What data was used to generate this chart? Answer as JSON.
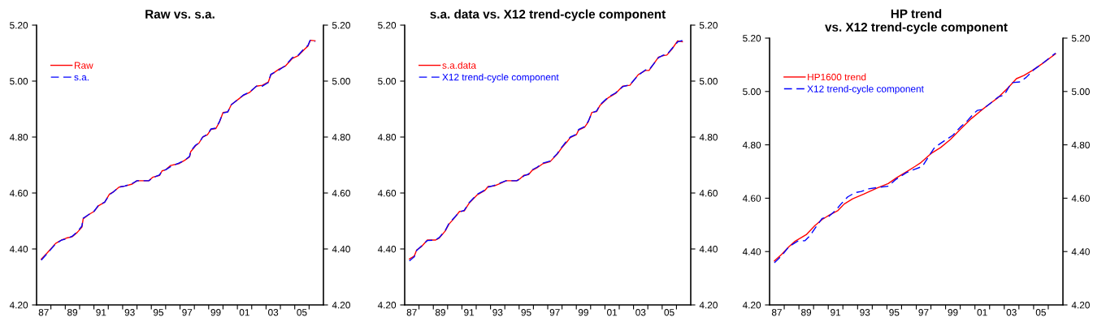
{
  "chart_data": [
    {
      "type": "line",
      "title": "Raw vs. s.a.",
      "legend": "top left",
      "grid": false,
      "xlim": [
        "1987",
        "2007"
      ],
      "ylim": [
        4.2,
        5.2
      ],
      "y2lim": [
        4.2,
        5.2
      ],
      "xticks": [
        {
          "value": "1988",
          "label": null
        },
        {
          "value": "1989",
          "label": null
        },
        {
          "value": "1990",
          "label": null
        },
        {
          "value": "1991",
          "label": null
        },
        {
          "value": "1992",
          "label": null
        },
        {
          "value": "1993",
          "label": null
        },
        {
          "value": "1994",
          "label": null
        },
        {
          "value": "1995",
          "label": null
        },
        {
          "value": "1996",
          "label": null
        },
        {
          "value": "1997",
          "label": null
        },
        {
          "value": "1998",
          "label": null
        },
        {
          "value": "1999",
          "label": null
        },
        {
          "value": "2000",
          "label": null
        },
        {
          "value": "2001",
          "label": null
        },
        {
          "value": "2002",
          "label": null
        },
        {
          "value": "2003",
          "label": null
        },
        {
          "value": "2004",
          "label": null
        },
        {
          "value": "2005",
          "label": null
        },
        {
          "value": "2006",
          "label": null
        },
        {
          "value": "1987-07",
          "label": "87"
        },
        {
          "value": "1989-07",
          "label": "89"
        },
        {
          "value": "1991-07",
          "label": "91"
        },
        {
          "value": "1993-07",
          "label": "93"
        },
        {
          "value": "1995-07",
          "label": "95"
        },
        {
          "value": "1997-07",
          "label": "97"
        },
        {
          "value": "1999-07",
          "label": "99"
        },
        {
          "value": "2001-07",
          "label": "01"
        },
        {
          "value": "2003-07",
          "label": "03"
        },
        {
          "value": "2005-07",
          "label": "05"
        }
      ],
      "yticks": [
        {
          "value": 4.2,
          "label": "4.20"
        },
        {
          "value": 4.4,
          "label": "4.40"
        },
        {
          "value": 4.6,
          "label": "4.60"
        },
        {
          "value": 4.8,
          "label": "4.80"
        },
        {
          "value": 5.0,
          "label": "5.00"
        },
        {
          "value": 5.2,
          "label": "5.20"
        }
      ],
      "y2ticks": [
        {
          "value": 4.2,
          "label": "4.20"
        },
        {
          "value": 4.4,
          "label": "4.40"
        },
        {
          "value": 4.6,
          "label": "4.60"
        },
        {
          "value": 4.8,
          "label": "4.80"
        },
        {
          "value": 5.0,
          "label": "5.00"
        },
        {
          "value": 5.2,
          "label": "5.20"
        }
      ],
      "series": [
        {
          "name": "Raw",
          "color": "#ff0000",
          "line_style": "solid",
          "x": [
            "1987-05",
            "1987-10",
            "1988-05",
            "1988-10",
            "1989-02",
            "1989-07",
            "1989-11",
            "1990-03",
            "1990-04",
            "1990-08",
            "1991-01",
            "1991-05",
            "1991-10",
            "1992-02",
            "1992-05",
            "1992-10",
            "1993-03",
            "1993-09",
            "1994-01",
            "1994-11",
            "1995-02",
            "1995-08",
            "1995-10",
            "1996-01",
            "1996-05",
            "1996-12",
            "1997-05",
            "1997-09",
            "1997-10",
            "1998-02",
            "1998-05",
            "1998-08",
            "1998-12",
            "1999-03",
            "1999-07",
            "1999-10",
            "2000-01",
            "2000-05",
            "2000-08",
            "2001-02",
            "2001-06",
            "2001-11",
            "2002-05",
            "2002-10",
            "2003-03",
            "2003-05",
            "2003-12",
            "2004-05",
            "2004-11",
            "2005-04",
            "2005-09",
            "2005-12",
            "2006-02",
            "2006-06"
          ],
          "values": [
            4.364,
            4.386,
            4.42,
            4.432,
            4.439,
            4.444,
            4.459,
            4.478,
            4.507,
            4.521,
            4.534,
            4.555,
            4.567,
            4.596,
            4.603,
            4.621,
            4.625,
            4.632,
            4.644,
            4.644,
            4.656,
            4.663,
            4.679,
            4.683,
            4.698,
            4.705,
            4.717,
            4.729,
            4.748,
            4.769,
            4.779,
            4.8,
            4.808,
            4.827,
            4.83,
            4.853,
            4.888,
            4.89,
            4.916,
            4.936,
            4.949,
            4.959,
            4.982,
            4.985,
            4.997,
            5.022,
            5.043,
            5.053,
            5.081,
            5.091,
            5.113,
            5.125,
            5.146,
            5.144
          ]
        },
        {
          "name": "s.a.",
          "color": "#0000ff",
          "line_style": "dashed",
          "x": [
            "1987-05",
            "1987-10",
            "1988-05",
            "1988-10",
            "1989-02",
            "1989-07",
            "1989-11",
            "1990-03",
            "1990-04",
            "1990-08",
            "1991-01",
            "1991-05",
            "1991-10",
            "1992-02",
            "1992-05",
            "1992-10",
            "1993-03",
            "1993-09",
            "1994-01",
            "1994-11",
            "1995-02",
            "1995-08",
            "1995-10",
            "1996-01",
            "1996-05",
            "1996-12",
            "1997-05",
            "1997-09",
            "1997-10",
            "1998-02",
            "1998-05",
            "1998-08",
            "1998-12",
            "1999-03",
            "1999-07",
            "1999-10",
            "2000-01",
            "2000-05",
            "2000-08",
            "2001-02",
            "2001-06",
            "2001-11",
            "2002-05",
            "2002-10",
            "2003-03",
            "2003-05",
            "2003-12",
            "2004-05",
            "2004-11",
            "2005-04",
            "2005-09",
            "2005-12",
            "2006-02",
            "2006-06"
          ],
          "values": [
            4.36,
            4.384,
            4.418,
            4.432,
            4.436,
            4.446,
            4.461,
            4.482,
            4.51,
            4.521,
            4.534,
            4.557,
            4.567,
            4.594,
            4.603,
            4.621,
            4.625,
            4.634,
            4.644,
            4.644,
            4.654,
            4.665,
            4.681,
            4.683,
            4.694,
            4.707,
            4.717,
            4.731,
            4.75,
            4.771,
            4.779,
            4.8,
            4.81,
            4.829,
            4.832,
            4.855,
            4.886,
            4.89,
            4.916,
            4.936,
            4.95,
            4.96,
            4.982,
            4.982,
            4.995,
            5.024,
            5.04,
            5.055,
            5.084,
            5.093,
            5.117,
            5.127,
            5.147,
            5.141
          ]
        }
      ]
    },
    {
      "type": "line",
      "title": "s.a. data vs. X12 trend-cycle component",
      "legend": "top left",
      "grid": false,
      "xlim": [
        "1987",
        "2007"
      ],
      "ylim": [
        4.2,
        5.2
      ],
      "y2lim": [
        4.2,
        5.2
      ],
      "xticks": [
        {
          "value": "1988",
          "label": null
        },
        {
          "value": "1989",
          "label": null
        },
        {
          "value": "1990",
          "label": null
        },
        {
          "value": "1991",
          "label": null
        },
        {
          "value": "1992",
          "label": null
        },
        {
          "value": "1993",
          "label": null
        },
        {
          "value": "1994",
          "label": null
        },
        {
          "value": "1995",
          "label": null
        },
        {
          "value": "1996",
          "label": null
        },
        {
          "value": "1997",
          "label": null
        },
        {
          "value": "1998",
          "label": null
        },
        {
          "value": "1999",
          "label": null
        },
        {
          "value": "2000",
          "label": null
        },
        {
          "value": "2001",
          "label": null
        },
        {
          "value": "2002",
          "label": null
        },
        {
          "value": "2003",
          "label": null
        },
        {
          "value": "2004",
          "label": null
        },
        {
          "value": "2005",
          "label": null
        },
        {
          "value": "2006",
          "label": null
        },
        {
          "value": "1987-07",
          "label": "87"
        },
        {
          "value": "1989-07",
          "label": "89"
        },
        {
          "value": "1991-07",
          "label": "91"
        },
        {
          "value": "1993-07",
          "label": "93"
        },
        {
          "value": "1995-07",
          "label": "95"
        },
        {
          "value": "1997-07",
          "label": "97"
        },
        {
          "value": "1999-07",
          "label": "99"
        },
        {
          "value": "2001-07",
          "label": "01"
        },
        {
          "value": "2003-07",
          "label": "03"
        },
        {
          "value": "2005-07",
          "label": "05"
        }
      ],
      "yticks": [
        {
          "value": 4.2,
          "label": "4.20"
        },
        {
          "value": 4.4,
          "label": "4.40"
        },
        {
          "value": 4.6,
          "label": "4.60"
        },
        {
          "value": 4.8,
          "label": "4.80"
        },
        {
          "value": 5.0,
          "label": "5.00"
        },
        {
          "value": 5.2,
          "label": "5.20"
        }
      ],
      "y2ticks": [
        {
          "value": 4.2,
          "label": "4.20"
        },
        {
          "value": 4.4,
          "label": "4.40"
        },
        {
          "value": 4.6,
          "label": "4.60"
        },
        {
          "value": 4.8,
          "label": "4.80"
        },
        {
          "value": 5.0,
          "label": "5.00"
        },
        {
          "value": 5.2,
          "label": "5.20"
        }
      ],
      "series": [
        {
          "name": "s.a.data",
          "color": "#ff0000",
          "line_style": "solid",
          "x": [
            "1987-05",
            "1987-09",
            "1987-11",
            "1988-03",
            "1988-08",
            "1989-03",
            "1989-06",
            "1989-11",
            "1990-02",
            "1990-07",
            "1990-11",
            "1991-03",
            "1991-07",
            "1992-02",
            "1992-08",
            "1992-11",
            "1993-04",
            "1993-09",
            "1994-02",
            "1994-11",
            "1995-02",
            "1995-05",
            "1995-09",
            "1995-12",
            "1996-04",
            "1996-09",
            "1997-03",
            "1997-09",
            "1998-01",
            "1998-05",
            "1998-08",
            "1999-01",
            "1999-03",
            "1999-08",
            "1999-11",
            "2000-02",
            "2000-06",
            "2000-09",
            "2000-11",
            "2001-04",
            "2001-10",
            "2002-04",
            "2002-10",
            "2003-05",
            "2003-11",
            "2004-02",
            "2004-10",
            "2005-02",
            "2005-05",
            "2005-09",
            "2006-02",
            "2006-06"
          ],
          "values": [
            4.364,
            4.374,
            4.396,
            4.408,
            4.432,
            4.432,
            4.439,
            4.464,
            4.488,
            4.512,
            4.534,
            4.536,
            4.563,
            4.594,
            4.608,
            4.623,
            4.625,
            4.634,
            4.644,
            4.644,
            4.652,
            4.663,
            4.666,
            4.681,
            4.69,
            4.705,
            4.712,
            4.739,
            4.763,
            4.782,
            4.798,
            4.808,
            4.825,
            4.835,
            4.854,
            4.888,
            4.891,
            4.914,
            4.922,
            4.941,
            4.956,
            4.982,
            4.985,
            5.023,
            5.038,
            5.038,
            5.086,
            5.091,
            5.093,
            5.113,
            5.144,
            5.141
          ]
        },
        {
          "name": "X12 trend-cycle component",
          "color": "#0000ff",
          "line_style": "dashed",
          "x": [
            "1987-05",
            "1987-09",
            "1987-11",
            "1988-03",
            "1988-08",
            "1989-03",
            "1989-06",
            "1989-11",
            "1990-02",
            "1990-07",
            "1990-11",
            "1991-03",
            "1991-07",
            "1992-02",
            "1992-08",
            "1992-11",
            "1993-04",
            "1993-09",
            "1994-02",
            "1994-11",
            "1995-02",
            "1995-05",
            "1995-09",
            "1995-12",
            "1996-04",
            "1996-09",
            "1997-03",
            "1997-09",
            "1998-01",
            "1998-05",
            "1998-08",
            "1999-01",
            "1999-03",
            "1999-08",
            "1999-11",
            "2000-02",
            "2000-06",
            "2000-09",
            "2000-11",
            "2001-04",
            "2001-10",
            "2002-04",
            "2002-10",
            "2003-05",
            "2003-11",
            "2004-02",
            "2004-10",
            "2005-02",
            "2005-05",
            "2005-09",
            "2006-02",
            "2006-06"
          ],
          "values": [
            4.357,
            4.372,
            4.394,
            4.41,
            4.43,
            4.432,
            4.441,
            4.466,
            4.49,
            4.514,
            4.532,
            4.538,
            4.565,
            4.596,
            4.61,
            4.621,
            4.627,
            4.636,
            4.644,
            4.644,
            4.65,
            4.661,
            4.668,
            4.683,
            4.692,
            4.707,
            4.714,
            4.741,
            4.765,
            4.786,
            4.8,
            4.81,
            4.827,
            4.837,
            4.856,
            4.886,
            4.893,
            4.916,
            4.924,
            4.943,
            4.958,
            4.98,
            4.987,
            5.021,
            5.04,
            5.04,
            5.084,
            5.093,
            5.095,
            5.115,
            5.14,
            5.145
          ]
        }
      ]
    },
    {
      "type": "line",
      "title": "HP trend\nvs. X12 trend-cycle component",
      "legend": "top left",
      "grid": false,
      "xlim": [
        "1987",
        "2007"
      ],
      "ylim": [
        4.2,
        5.2
      ],
      "y2lim": [
        4.2,
        5.2
      ],
      "xticks": [
        {
          "value": "1988",
          "label": null
        },
        {
          "value": "1989",
          "label": null
        },
        {
          "value": "1990",
          "label": null
        },
        {
          "value": "1991",
          "label": null
        },
        {
          "value": "1992",
          "label": null
        },
        {
          "value": "1993",
          "label": null
        },
        {
          "value": "1994",
          "label": null
        },
        {
          "value": "1995",
          "label": null
        },
        {
          "value": "1996",
          "label": null
        },
        {
          "value": "1997",
          "label": null
        },
        {
          "value": "1998",
          "label": null
        },
        {
          "value": "1999",
          "label": null
        },
        {
          "value": "2000",
          "label": null
        },
        {
          "value": "2001",
          "label": null
        },
        {
          "value": "2002",
          "label": null
        },
        {
          "value": "2003",
          "label": null
        },
        {
          "value": "2004",
          "label": null
        },
        {
          "value": "2005",
          "label": null
        },
        {
          "value": "2006",
          "label": null
        },
        {
          "value": "1987-07",
          "label": "87"
        },
        {
          "value": "1989-07",
          "label": "89"
        },
        {
          "value": "1991-07",
          "label": "91"
        },
        {
          "value": "1993-07",
          "label": "93"
        },
        {
          "value": "1995-07",
          "label": "95"
        },
        {
          "value": "1997-07",
          "label": "97"
        },
        {
          "value": "1999-07",
          "label": "99"
        },
        {
          "value": "2001-07",
          "label": "01"
        },
        {
          "value": "2003-07",
          "label": "03"
        },
        {
          "value": "2005-07",
          "label": "05"
        }
      ],
      "yticks": [
        {
          "value": 4.2,
          "label": "4.20"
        },
        {
          "value": 4.4,
          "label": "4.40"
        },
        {
          "value": 4.6,
          "label": "4.60"
        },
        {
          "value": 4.8,
          "label": "4.80"
        },
        {
          "value": 5.0,
          "label": "5.00"
        },
        {
          "value": 5.2,
          "label": "5.20"
        }
      ],
      "y2ticks": [
        {
          "value": 4.2,
          "label": "4.20"
        },
        {
          "value": 4.4,
          "label": "4.40"
        },
        {
          "value": 4.6,
          "label": "4.60"
        },
        {
          "value": 4.8,
          "label": "4.80"
        },
        {
          "value": 5.0,
          "label": "5.00"
        },
        {
          "value": 5.2,
          "label": "5.20"
        }
      ],
      "series": [
        {
          "name": "HP1600 trend",
          "color": "#ff0000",
          "line_style": "solid",
          "x": [
            "1987-05",
            "1987-11",
            "1988-05",
            "1988-10",
            "1989-07",
            "1990-02",
            "1990-08",
            "1991-02",
            "1991-09",
            "1992-02",
            "1992-09",
            "1993-06",
            "1994-05",
            "1995-02",
            "1995-09",
            "1996-05",
            "1996-12",
            "1997-05",
            "1998-01",
            "1998-09",
            "1999-05",
            "2000-01",
            "2000-10",
            "2001-07",
            "2002-02",
            "2002-08",
            "2003-04",
            "2003-11",
            "2004-05",
            "2004-12",
            "2005-08",
            "2006-07"
          ],
          "values": [
            4.365,
            4.39,
            4.419,
            4.439,
            4.463,
            4.497,
            4.52,
            4.537,
            4.554,
            4.578,
            4.598,
            4.615,
            4.638,
            4.655,
            4.677,
            4.699,
            4.719,
            4.734,
            4.767,
            4.79,
            4.82,
            4.858,
            4.898,
            4.932,
            4.957,
            4.977,
            5.013,
            5.048,
            5.06,
            5.079,
            5.104,
            5.141
          ]
        },
        {
          "name": "X12 trend-cycle component",
          "color": "#0000ff",
          "line_style": "dashed",
          "x": [
            "1987-05",
            "1987-11",
            "1988-05",
            "1988-12",
            "1989-06",
            "1989-10",
            "1990-03",
            "1990-08",
            "1991-01",
            "1991-07",
            "1991-12",
            "1992-05",
            "1992-11",
            "1993-04",
            "1993-10",
            "1994-07",
            "1995-02",
            "1995-08",
            "1996-05",
            "1996-12",
            "1997-06",
            "1997-11",
            "1998-04",
            "1998-12",
            "1999-07",
            "2000-01",
            "2000-07",
            "2000-12",
            "2001-03",
            "2001-07",
            "2002-02",
            "2002-08",
            "2003-01",
            "2003-07",
            "2004-02",
            "2004-07",
            "2005-01",
            "2005-10",
            "2006-07"
          ],
          "values": [
            4.358,
            4.385,
            4.419,
            4.439,
            4.441,
            4.459,
            4.492,
            4.524,
            4.53,
            4.554,
            4.581,
            4.605,
            4.621,
            4.625,
            4.635,
            4.641,
            4.645,
            4.669,
            4.696,
            4.709,
            4.719,
            4.755,
            4.79,
            4.815,
            4.836,
            4.866,
            4.891,
            4.917,
            4.929,
            4.932,
            4.957,
            4.979,
            4.987,
            5.033,
            5.036,
            5.053,
            5.081,
            5.111,
            5.144
          ]
        }
      ]
    }
  ]
}
